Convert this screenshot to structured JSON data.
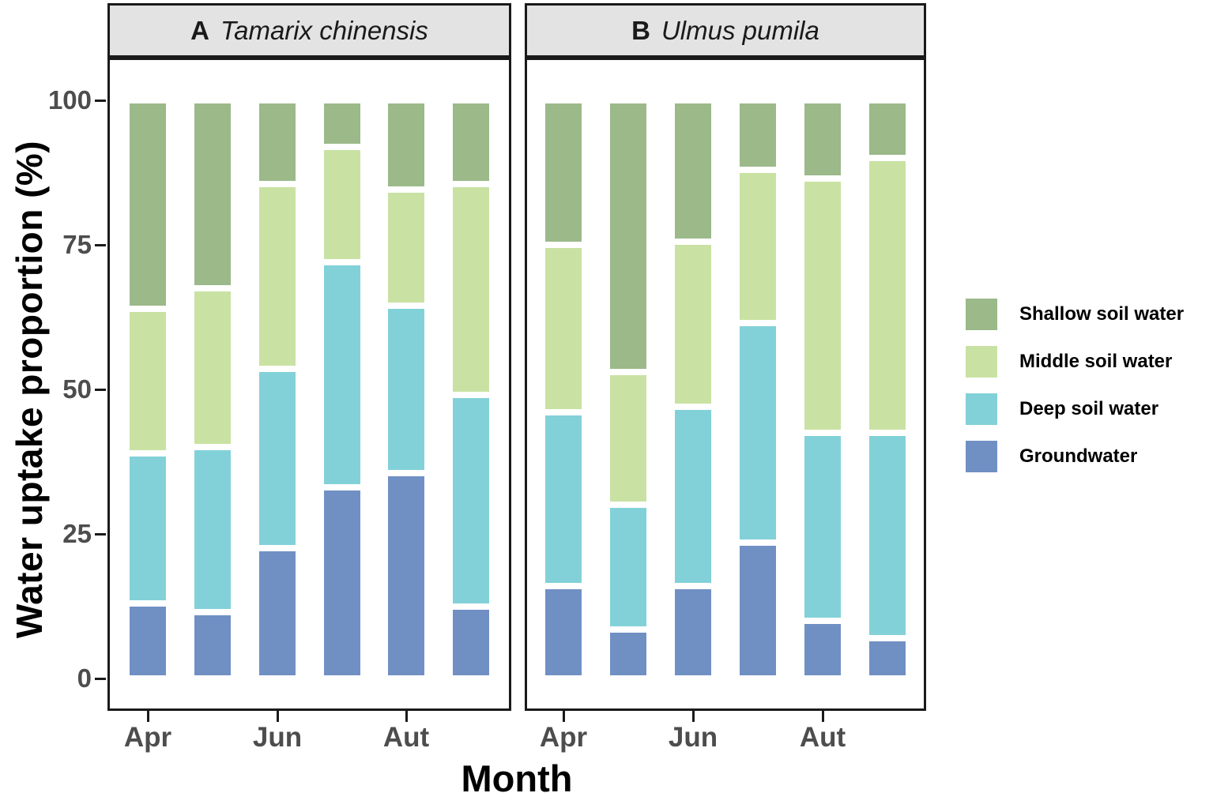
{
  "chart_data": {
    "type": "bar",
    "stacked": true,
    "unit": "%",
    "xlabel": "Month",
    "ylabel": "Water uptake proportion (%)",
    "ylim": [
      0,
      100
    ],
    "yticks": [
      0,
      25,
      50,
      75,
      100
    ],
    "xtick_labels": [
      "Apr",
      "Jun",
      "Aut"
    ],
    "xtick_bar_indices": [
      0,
      2,
      4
    ],
    "legend_position": "right",
    "legend": [
      {
        "label": "Shallow soil water",
        "color": "#9bb989"
      },
      {
        "label": "Middle soil water",
        "color": "#c9e2a3"
      },
      {
        "label": "Deep soil water",
        "color": "#82d1d8"
      },
      {
        "label": "Groundwater",
        "color": "#7090c4"
      }
    ],
    "panels": [
      {
        "label": "A",
        "species": "Tamarix chinensis",
        "bar_count": 6,
        "series_bottom_to_top": [
          {
            "name": "Groundwater",
            "color": "#7090c4",
            "values": [
              13,
              11.5,
              22.5,
              33,
              35.5,
              12.5
            ]
          },
          {
            "name": "Deep soil water",
            "color": "#82d1d8",
            "values": [
              26,
              28.5,
              31,
              39,
              29,
              36.5
            ]
          },
          {
            "name": "Middle soil water",
            "color": "#c9e2a3",
            "values": [
              25,
              27.5,
              32,
              20,
              20,
              36.5
            ]
          },
          {
            "name": "Shallow soil water",
            "color": "#9bb989",
            "values": [
              36,
              32.5,
              14.5,
              8,
              15.5,
              14.5
            ]
          }
        ]
      },
      {
        "label": "B",
        "species": "Ulmus pumila",
        "bar_count": 6,
        "series_bottom_to_top": [
          {
            "name": "Groundwater",
            "color": "#7090c4",
            "values": [
              16,
              8.5,
              16,
              23.5,
              10,
              7
            ]
          },
          {
            "name": "Deep soil water",
            "color": "#82d1d8",
            "values": [
              30,
              21.5,
              31,
              38,
              32.5,
              35.5
            ]
          },
          {
            "name": "Middle soil water",
            "color": "#c9e2a3",
            "values": [
              29,
              23,
              28.5,
              26.5,
              44,
              47.5
            ]
          },
          {
            "name": "Shallow soil water",
            "color": "#9bb989",
            "values": [
              25,
              47,
              24.5,
              12,
              13.5,
              10
            ]
          }
        ]
      }
    ]
  }
}
